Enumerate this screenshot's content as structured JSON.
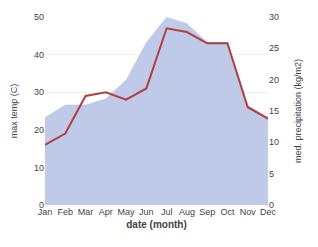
{
  "chart_data": {
    "type": "line",
    "categories": [
      "Jan",
      "Feb",
      "Mar",
      "Apr",
      "May",
      "Jun",
      "Jul",
      "Aug",
      "Sep",
      "Oct",
      "Nov",
      "Dec"
    ],
    "series": [
      {
        "type": "area",
        "axis": "y2",
        "color": "#bfc9e8",
        "values": [
          14,
          16,
          16,
          17,
          20,
          26,
          30,
          29,
          26,
          26,
          16,
          14
        ]
      },
      {
        "type": "line",
        "color": "#b04040",
        "values": [
          16,
          19,
          29,
          30,
          28,
          31,
          47,
          46,
          43,
          43,
          26,
          23
        ]
      }
    ],
    "xlabel": "date (month)",
    "ylabel": "max temp (C)",
    "y2label": "med. precipitation (kg/m2)",
    "ylim": [
      0,
      50
    ],
    "yticks": [
      0,
      10,
      20,
      30,
      40,
      50
    ],
    "y2lim": [
      0,
      30
    ],
    "y2ticks": [
      0,
      5,
      10,
      15,
      20,
      25,
      30
    ],
    "grid": true
  }
}
